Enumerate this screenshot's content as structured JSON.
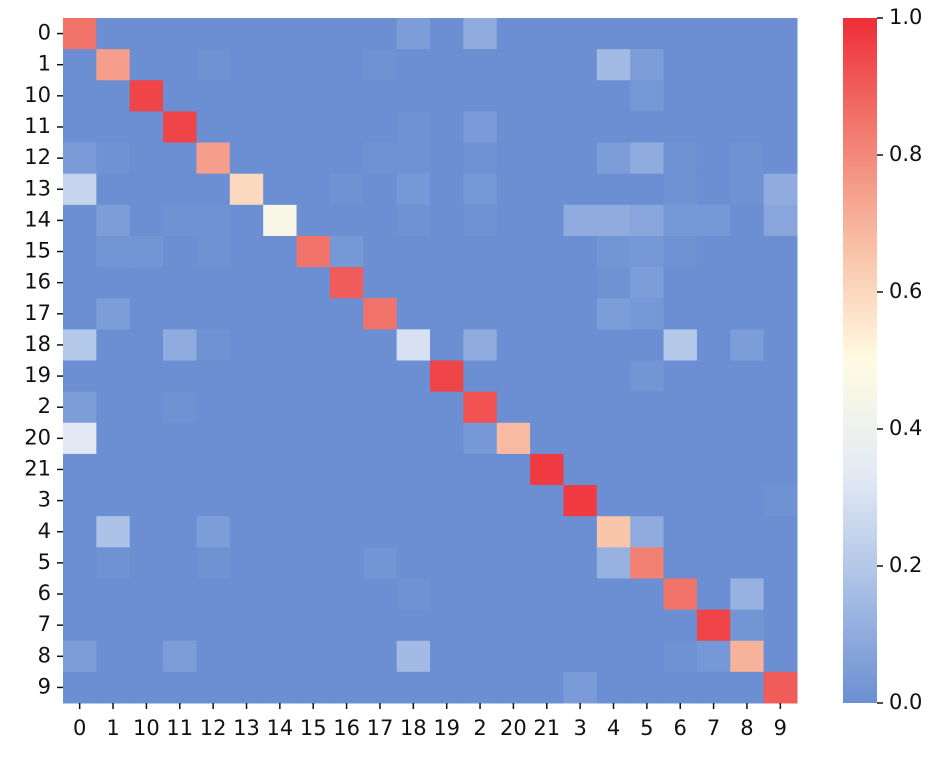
{
  "chart_data": {
    "type": "heatmap",
    "x_categories": [
      "0",
      "1",
      "10",
      "11",
      "12",
      "13",
      "14",
      "15",
      "16",
      "17",
      "18",
      "19",
      "2",
      "20",
      "21",
      "3",
      "4",
      "5",
      "6",
      "7",
      "8",
      "9"
    ],
    "y_categories": [
      "0",
      "1",
      "10",
      "11",
      "12",
      "13",
      "14",
      "15",
      "16",
      "17",
      "18",
      "19",
      "2",
      "20",
      "21",
      "3",
      "4",
      "5",
      "6",
      "7",
      "8",
      "9"
    ],
    "values": [
      [
        0.85,
        0,
        0,
        0,
        0,
        0,
        0,
        0,
        0,
        0,
        0.05,
        0,
        0.1,
        0,
        0,
        0,
        0,
        0,
        0,
        0,
        0,
        0
      ],
      [
        0,
        0.75,
        0,
        0,
        0.01,
        0,
        0,
        0,
        0,
        0.01,
        0,
        0,
        0,
        0,
        0,
        0,
        0.15,
        0.05,
        0,
        0,
        0,
        0
      ],
      [
        0,
        0,
        0.95,
        0,
        0,
        0,
        0,
        0,
        0,
        0,
        0,
        0,
        0,
        0,
        0,
        0,
        0,
        0.03,
        0,
        0,
        0,
        0
      ],
      [
        0,
        0,
        0,
        0.95,
        0,
        0,
        0,
        0,
        0,
        0,
        0.01,
        0,
        0.04,
        0,
        0,
        0,
        0,
        0,
        0,
        0,
        0,
        0
      ],
      [
        0.04,
        0.01,
        0,
        0,
        0.75,
        0,
        0,
        0,
        0,
        0.01,
        0.01,
        0,
        0.01,
        0,
        0,
        0,
        0.05,
        0.1,
        0.01,
        0,
        0.01,
        0
      ],
      [
        0.25,
        0,
        0,
        0,
        0,
        0.6,
        0,
        0,
        0.01,
        0,
        0.03,
        0,
        0.03,
        0,
        0,
        0,
        0,
        0,
        0.01,
        0,
        0.01,
        0.1
      ],
      [
        0,
        0.05,
        0,
        0.01,
        0.01,
        0,
        0.45,
        0,
        0,
        0,
        0.01,
        0,
        0.01,
        0,
        0,
        0.1,
        0.1,
        0.08,
        0.03,
        0.03,
        0,
        0.08
      ],
      [
        0,
        0.02,
        0.02,
        0,
        0.01,
        0,
        0,
        0.85,
        0.03,
        0,
        0,
        0,
        0,
        0,
        0,
        0,
        0.02,
        0.03,
        0.01,
        0,
        0,
        0
      ],
      [
        0,
        0,
        0,
        0,
        0,
        0,
        0,
        0,
        0.9,
        0,
        0,
        0,
        0,
        0,
        0,
        0,
        0.01,
        0.05,
        0,
        0,
        0,
        0
      ],
      [
        0,
        0.05,
        0,
        0,
        0,
        0,
        0,
        0,
        0,
        0.85,
        0,
        0,
        0,
        0,
        0,
        0,
        0.05,
        0.03,
        0,
        0,
        0,
        0
      ],
      [
        0.2,
        0,
        0,
        0.1,
        0.01,
        0,
        0,
        0,
        0,
        0,
        0.3,
        0,
        0.1,
        0,
        0,
        0,
        0,
        0,
        0.2,
        0,
        0.05,
        0
      ],
      [
        0,
        0,
        0,
        0,
        0,
        0,
        0,
        0,
        0,
        0,
        0,
        0.95,
        0,
        0,
        0,
        0,
        0,
        0.02,
        0,
        0,
        0,
        0
      ],
      [
        0.05,
        0,
        0,
        0.01,
        0,
        0,
        0,
        0,
        0,
        0,
        0,
        0,
        0.92,
        0,
        0,
        0,
        0,
        0,
        0,
        0,
        0,
        0
      ],
      [
        0.33,
        0,
        0,
        0,
        0,
        0,
        0,
        0,
        0,
        0,
        0,
        0,
        0.03,
        0.68,
        0,
        0,
        0,
        0,
        0,
        0,
        0,
        0
      ],
      [
        0,
        0,
        0,
        0,
        0,
        0,
        0,
        0,
        0,
        0,
        0,
        0,
        0,
        0,
        0.97,
        0,
        0,
        0,
        0,
        0,
        0,
        0
      ],
      [
        0,
        0,
        0,
        0,
        0,
        0,
        0,
        0,
        0,
        0,
        0,
        0,
        0,
        0,
        0,
        0.97,
        0,
        0,
        0,
        0,
        0,
        0.01
      ],
      [
        0,
        0.18,
        0,
        0,
        0.05,
        0,
        0,
        0,
        0,
        0,
        0,
        0,
        0,
        0,
        0,
        0,
        0.65,
        0.1,
        0,
        0,
        0,
        0
      ],
      [
        0,
        0.01,
        0,
        0,
        0.01,
        0,
        0,
        0,
        0,
        0.02,
        0,
        0,
        0,
        0,
        0,
        0,
        0.12,
        0.82,
        0,
        0,
        0,
        0
      ],
      [
        0,
        0,
        0,
        0,
        0,
        0,
        0,
        0,
        0,
        0,
        0.01,
        0,
        0,
        0,
        0,
        0,
        0,
        0,
        0.85,
        0,
        0.12,
        0
      ],
      [
        0,
        0,
        0,
        0,
        0,
        0,
        0,
        0,
        0,
        0,
        0,
        0,
        0,
        0,
        0,
        0,
        0,
        0,
        0,
        0.95,
        0.02,
        0
      ],
      [
        0.05,
        0,
        0,
        0.05,
        0,
        0,
        0,
        0,
        0,
        0,
        0.15,
        0,
        0,
        0,
        0,
        0,
        0,
        0,
        0.01,
        0.03,
        0.7,
        0
      ],
      [
        0,
        0,
        0,
        0,
        0,
        0,
        0,
        0,
        0,
        0,
        0,
        0,
        0,
        0,
        0,
        0.04,
        0,
        0,
        0,
        0,
        0,
        0.9
      ]
    ],
    "clim": [
      0,
      1
    ],
    "cticks": [
      {
        "value": 0,
        "label": "0.0"
      },
      {
        "value": 0.2,
        "label": "0.2"
      },
      {
        "value": 0.4,
        "label": "0.4"
      },
      {
        "value": 0.6,
        "label": "0.6"
      },
      {
        "value": 0.8,
        "label": "0.8"
      },
      {
        "value": 1,
        "label": "1.0"
      }
    ],
    "colormap": [
      "#6b8fd2",
      "#a8bfe6",
      "#e3eaf4",
      "#fffbe2",
      "#f8c0a6",
      "#f27b70",
      "#ee2d37"
    ]
  }
}
